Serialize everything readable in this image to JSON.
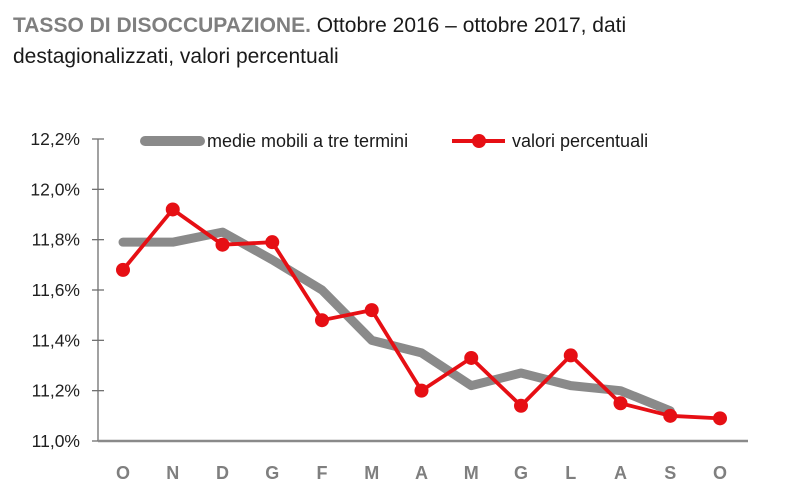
{
  "title": {
    "bold": "TASSO DI DISOCCUPAZIONE.",
    "rest": "Ottobre 2016 – ottobre 2017, dati destagionalizzati, valori percentuali"
  },
  "legend": [
    {
      "label": "medie mobili a tre termini"
    },
    {
      "label": "valori percentuali"
    }
  ],
  "colors": {
    "values_line": "#e60f14",
    "moving_average_line": "#8a8a8a",
    "title_accent": "#7f7f7f",
    "x_labels": "#7f7f7f",
    "y_labels": "#1f1f1f",
    "x_axis": "#8a8a8a",
    "y_axis": "#6f6f6f"
  },
  "chart_data": {
    "type": "line",
    "title": "TASSO DI DISOCCUPAZIONE. Ottobre 2016 – ottobre 2017, dati destagionalizzati, valori percentuali",
    "xlabel": "",
    "ylabel": "",
    "categories": [
      "O",
      "N",
      "D",
      "G",
      "F",
      "M",
      "A",
      "M",
      "G",
      "L",
      "A",
      "S",
      "O"
    ],
    "series": [
      {
        "name": "medie mobili a tre termini",
        "color": "#8a8a8a",
        "values": [
          11.79,
          11.79,
          11.83,
          11.72,
          11.6,
          11.4,
          11.35,
          11.22,
          11.27,
          11.22,
          11.2,
          11.12,
          null
        ]
      },
      {
        "name": "valori percentuali",
        "color": "#e60f14",
        "values": [
          11.68,
          11.92,
          11.78,
          11.79,
          11.48,
          11.52,
          11.2,
          11.33,
          11.14,
          11.34,
          11.15,
          11.1,
          11.09
        ]
      }
    ],
    "ylim": [
      11.0,
      12.2
    ],
    "y_tick_values": [
      12.2,
      12.0,
      11.8,
      11.6,
      11.4,
      11.2,
      11.0
    ],
    "y_tick_labels": [
      "12,2%",
      "12,0%",
      "11,8%",
      "11,6%",
      "11,4%",
      "11,2%",
      "11,0%"
    ],
    "grid": false,
    "legend_position": "top"
  }
}
